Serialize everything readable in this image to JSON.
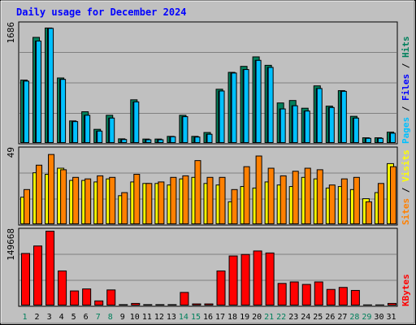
{
  "title": "Daily usage for December 2024",
  "colors": {
    "background": "#c0c0c0",
    "plot_bg": "#c0c0c0",
    "title": "#0000ff",
    "hits": "#00805c",
    "files": "#0000ff",
    "pages": "#00c0ff",
    "visits": "#ffff00",
    "sites": "#ff8000",
    "kbytes": "#ff0000",
    "weekend_label": "#00805c",
    "weekday_label": "#000000"
  },
  "panel_labels": {
    "hits_files_pages": {
      "pages": "Pages",
      "sep1": " / ",
      "files": "Files",
      "sep2": " / ",
      "hits": "Hits"
    },
    "visits_sites": {
      "sites": "Sites",
      "sep": " / ",
      "visits": "Visits"
    },
    "kbytes": "KBytes"
  },
  "chart_data": [
    {
      "type": "bar",
      "title": "Daily usage for December 2024",
      "categories": [
        "1",
        "2",
        "3",
        "4",
        "5",
        "6",
        "7",
        "8",
        "9",
        "10",
        "11",
        "12",
        "13",
        "14",
        "15",
        "16",
        "17",
        "18",
        "19",
        "20",
        "21",
        "22",
        "23",
        "24",
        "25",
        "26",
        "27",
        "28",
        "29",
        "30",
        "31"
      ],
      "weekend_days": [
        "1",
        "7",
        "8",
        "14",
        "15",
        "21",
        "22",
        "28",
        "29"
      ],
      "ymax_label": "1686",
      "ylim": [
        0,
        1686
      ],
      "series": [
        {
          "name": "Hits",
          "values": [
            900,
            1507,
            1640,
            930,
            320,
            450,
            200,
            400,
            65,
            620,
            62,
            62,
            100,
            400,
            100,
            155,
            770,
            1010,
            1095,
            1230,
            1110,
            575,
            610,
            500,
            818,
            530,
            750,
            385,
            80,
            80,
            160
          ]
        },
        {
          "name": "Files",
          "values": [
            885,
            1455,
            1635,
            910,
            310,
            400,
            175,
            360,
            55,
            590,
            52,
            52,
            95,
            380,
            90,
            130,
            745,
            1000,
            1050,
            1180,
            1080,
            490,
            535,
            460,
            780,
            510,
            740,
            360,
            72,
            72,
            145
          ]
        },
        {
          "name": "Pages",
          "values": [
            885,
            1455,
            1635,
            910,
            310,
            400,
            175,
            360,
            55,
            590,
            52,
            52,
            95,
            380,
            90,
            130,
            745,
            1000,
            1050,
            1180,
            1080,
            490,
            535,
            460,
            780,
            510,
            740,
            360,
            72,
            72,
            145
          ]
        }
      ]
    },
    {
      "type": "bar",
      "ymax_label": "49",
      "ylim": [
        0,
        49
      ],
      "series": [
        {
          "name": "Visits",
          "values": [
            18,
            34,
            33,
            37,
            29,
            29,
            28,
            30,
            19,
            28,
            27,
            27,
            26,
            30,
            31,
            27,
            26,
            15,
            25,
            24,
            28,
            26,
            25,
            31,
            30,
            24,
            25,
            23,
            17,
            21,
            40
          ]
        },
        {
          "name": "Sites",
          "values": [
            23,
            39,
            46,
            36,
            31,
            30,
            32,
            31,
            21,
            33,
            27,
            28,
            31,
            32,
            42,
            31,
            31,
            23,
            38,
            45,
            37,
            32,
            35,
            37,
            36,
            26,
            30,
            31,
            15,
            27,
            38
          ]
        }
      ]
    },
    {
      "type": "bar",
      "ymax_label": "149668",
      "ylim": [
        0,
        149668
      ],
      "series": [
        {
          "name": "KBytes",
          "values": [
            105000,
            120000,
            149668,
            70000,
            30000,
            34000,
            10000,
            32000,
            2500,
            5000,
            2500,
            2500,
            2500,
            27000,
            4000,
            4000,
            70000,
            100000,
            103000,
            110000,
            106000,
            45000,
            48000,
            43000,
            48000,
            33000,
            37000,
            31000,
            2000,
            2000,
            5000
          ]
        }
      ]
    }
  ]
}
